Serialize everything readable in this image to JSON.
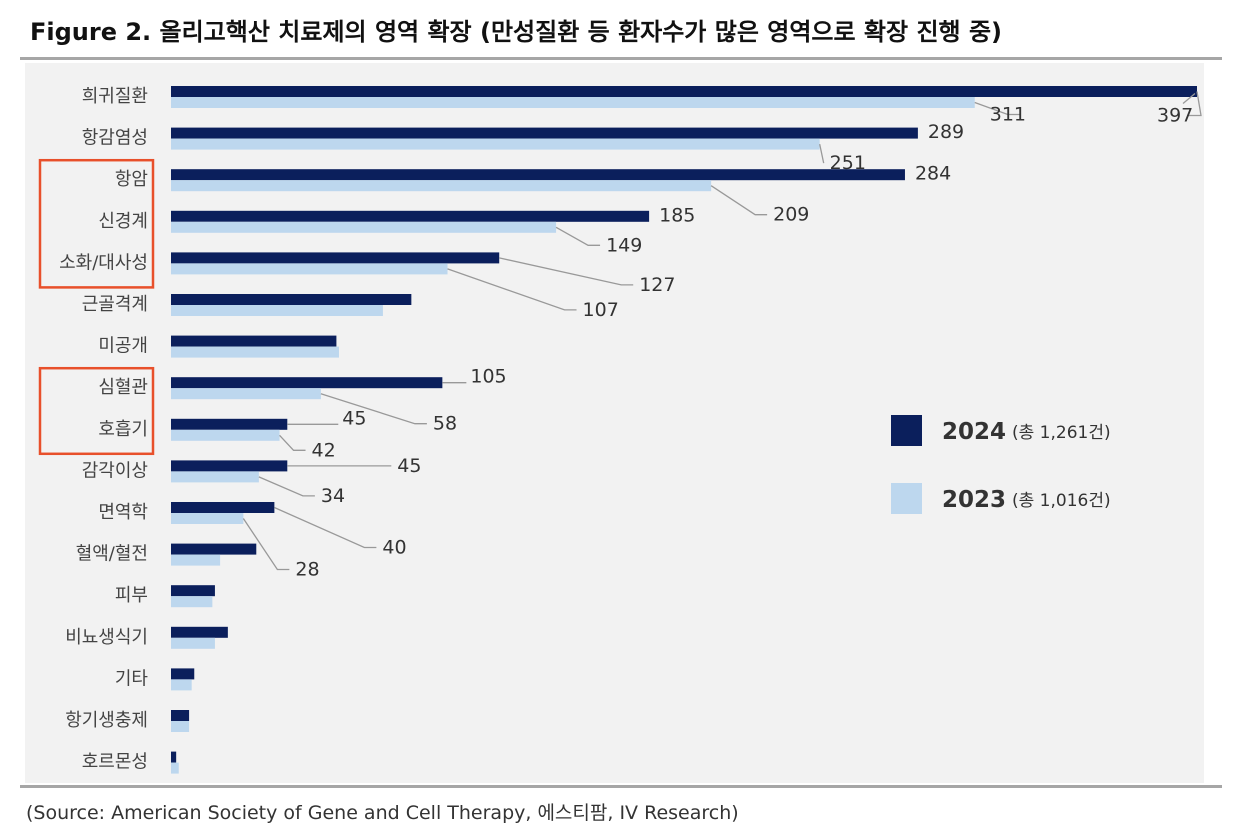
{
  "title": "Figure 2. 올리고핵산 치료제의 영역 확장 (만성질환 등 환자수가 많은 영역으로 확장 진행 중)",
  "source": "(Source: American Society of Gene and Cell Therapy, 에스티팜, IV Research)",
  "colors": {
    "s2024": "#0b1f5c",
    "s2023": "#bdd7ee",
    "highlight": "#e8502b",
    "leader": "#999999"
  },
  "chart_data": {
    "type": "bar",
    "orientation": "horizontal",
    "categories": [
      "희귀질환",
      "항감염성",
      "항암",
      "신경계",
      "소화/대사성",
      "근골격계",
      "미공개",
      "심혈관",
      "호흡기",
      "감각이상",
      "면역학",
      "혈액/혈전",
      "피부",
      "비뇨생식기",
      "기타",
      "항기생충제",
      "호르몬성"
    ],
    "series": [
      {
        "name": "2024",
        "legend_total": "(총 1,261건)",
        "values": [
          397,
          289,
          284,
          185,
          127,
          93,
          64,
          105,
          45,
          45,
          40,
          33,
          17,
          22,
          9,
          7,
          2
        ]
      },
      {
        "name": "2023",
        "legend_total": "(총 1,016건)",
        "values": [
          311,
          251,
          209,
          149,
          107,
          82,
          65,
          58,
          42,
          34,
          28,
          19,
          16,
          17,
          8,
          7,
          3
        ]
      }
    ],
    "data_labels": [
      {
        "series": 0,
        "index": 0,
        "text": "397"
      },
      {
        "series": 1,
        "index": 0,
        "text": "311"
      },
      {
        "series": 0,
        "index": 1,
        "text": "289"
      },
      {
        "series": 1,
        "index": 1,
        "text": "251"
      },
      {
        "series": 0,
        "index": 2,
        "text": "284"
      },
      {
        "series": 1,
        "index": 2,
        "text": "209"
      },
      {
        "series": 0,
        "index": 3,
        "text": "185"
      },
      {
        "series": 1,
        "index": 3,
        "text": "149"
      },
      {
        "series": 0,
        "index": 4,
        "text": "127"
      },
      {
        "series": 1,
        "index": 4,
        "text": "107"
      },
      {
        "series": 0,
        "index": 7,
        "text": "105"
      },
      {
        "series": 1,
        "index": 7,
        "text": "58"
      },
      {
        "series": 0,
        "index": 8,
        "text": "45"
      },
      {
        "series": 1,
        "index": 8,
        "text": "42"
      },
      {
        "series": 0,
        "index": 9,
        "text": "45"
      },
      {
        "series": 1,
        "index": 9,
        "text": "34"
      },
      {
        "series": 0,
        "index": 10,
        "text": "40"
      },
      {
        "series": 1,
        "index": 10,
        "text": "28"
      }
    ],
    "highlight_groups": [
      [
        "항암",
        "신경계",
        "소화/대사성"
      ],
      [
        "심혈관",
        "호흡기"
      ]
    ],
    "xlim": [
      0,
      397
    ],
    "grid": false,
    "legend": "right"
  }
}
